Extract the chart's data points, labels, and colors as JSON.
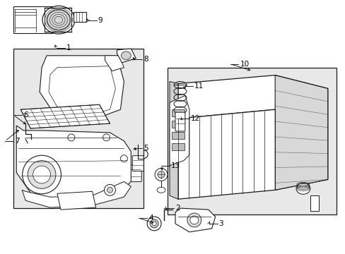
{
  "bg_color": "#ffffff",
  "fill_gray": "#e8e8e8",
  "line_color": "#1a1a1a",
  "fig_width": 4.89,
  "fig_height": 3.6,
  "dpi": 100,
  "label_fontsize": 7.5
}
